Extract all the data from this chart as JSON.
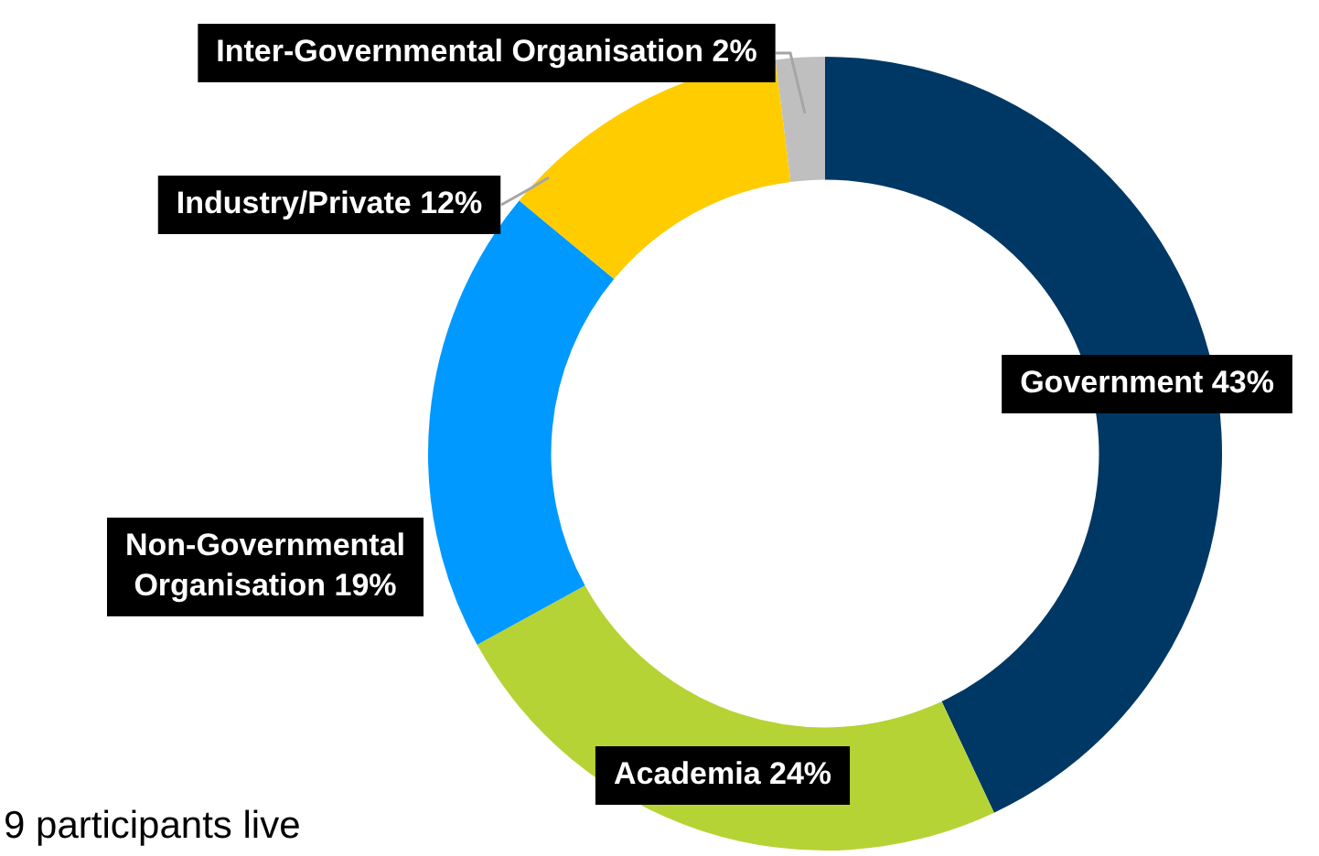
{
  "chart_data": {
    "type": "donut",
    "categories": [
      "Government",
      "Academia",
      "Non-Governmental Organisation",
      "Industry/Private",
      "Inter-Governmental Organisation"
    ],
    "values": [
      43,
      24,
      19,
      12,
      2
    ],
    "value_labels": [
      "43%",
      "24%",
      "19%",
      "12%",
      "2%"
    ],
    "colors": [
      "#003865",
      "#b5d334",
      "#0099ff",
      "#ffcc00",
      "#bfbfbf"
    ],
    "legend": false,
    "annotations": [
      "9 participants live"
    ]
  }
}
